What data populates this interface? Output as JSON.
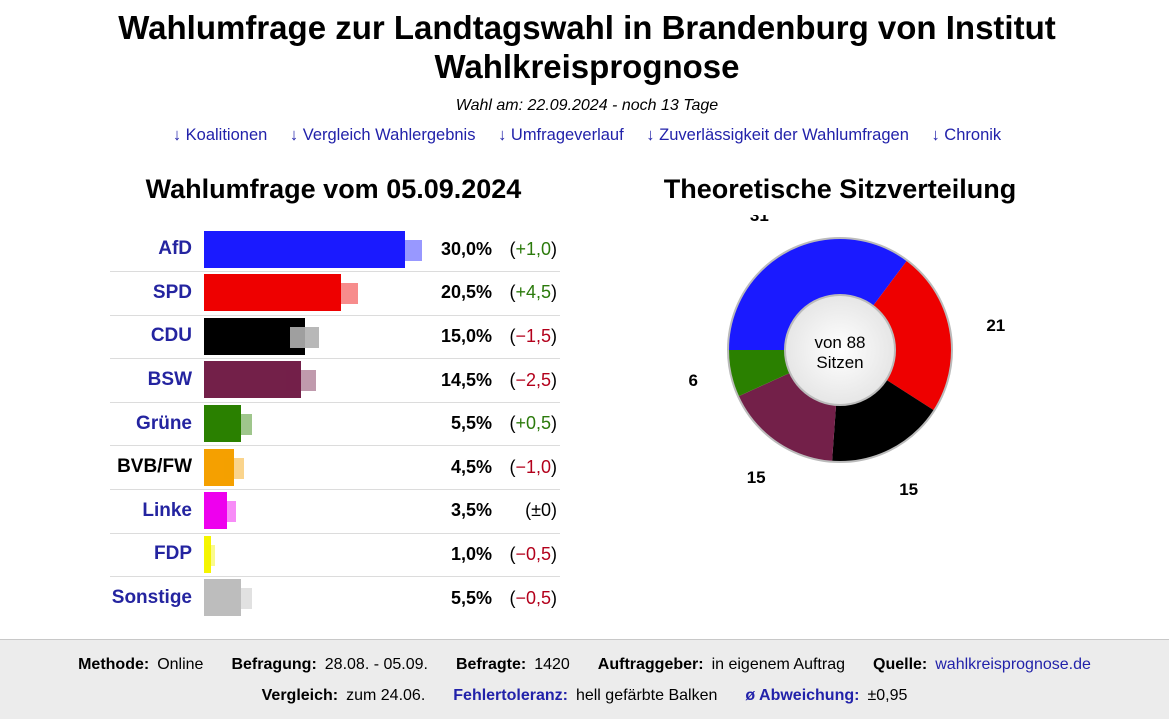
{
  "header": {
    "title": "Wahlumfrage zur Landtagswahl in Brandenburg von Institut Wahlkreisprognose",
    "subtitle": "Wahl am: 22.09.2024 - noch 13 Tage",
    "nav": [
      "↓ Koalitionen",
      "↓ Vergleich Wahlergebnis",
      "↓ Umfrageverlauf",
      "↓ Zuverlässigkeit der Wahlumfragen",
      "↓ Chronik"
    ]
  },
  "chart_data": [
    {
      "type": "bar",
      "title": "Wahlumfrage vom 05.09.2024",
      "orientation": "horizontal",
      "unit": "%",
      "categories": [
        "AfD",
        "SPD",
        "CDU",
        "BSW",
        "Grüne",
        "BVB/FW",
        "Linke",
        "FDP",
        "Sonstige"
      ],
      "values": [
        30.0,
        20.5,
        15.0,
        14.5,
        5.5,
        4.5,
        3.5,
        1.0,
        5.5
      ],
      "value_labels": [
        "30,0%",
        "20,5%",
        "15,0%",
        "14,5%",
        "5,5%",
        "4,5%",
        "3,5%",
        "1,0%",
        "5,5%"
      ],
      "change_labels": [
        "+1,0",
        "+4,5",
        "−1,5",
        "−2,5",
        "+0,5",
        "−1,0",
        "±0",
        "−0,5",
        "−0,5"
      ],
      "changes": [
        1.0,
        4.5,
        -1.5,
        -2.5,
        0.5,
        -1.0,
        0.0,
        -0.5,
        -0.5
      ],
      "error_margin": [
        2.5,
        2.5,
        2.2,
        2.2,
        1.6,
        1.5,
        1.3,
        0.7,
        1.6
      ],
      "colors": [
        "#1a1aff",
        "#ee0000",
        "#000000",
        "#732049",
        "#2a8000",
        "#f5a000",
        "#ee00ee",
        "#f5f500",
        "#bdbdbd"
      ],
      "linked": [
        true,
        true,
        true,
        true,
        true,
        false,
        true,
        true,
        true
      ],
      "xlim": [
        0,
        30
      ]
    },
    {
      "type": "pie",
      "title": "Theoretische Sitzverteilung",
      "style": "donut",
      "total_label": [
        "von 88",
        "Sitzen"
      ],
      "categories": [
        "AfD",
        "SPD",
        "CDU",
        "BSW",
        "Grüne"
      ],
      "values": [
        31,
        21,
        15,
        15,
        6
      ],
      "colors": [
        "#1a1aff",
        "#ee0000",
        "#000000",
        "#732049",
        "#2a8000"
      ]
    }
  ],
  "footer": {
    "row1": [
      {
        "key": "Methode:",
        "value": "Online",
        "link": false
      },
      {
        "key": "Befragung:",
        "value": "28.08. - 05.09.",
        "link": false
      },
      {
        "key": "Befragte:",
        "value": "1420",
        "link": false
      },
      {
        "key": "Auftraggeber:",
        "value": "in eigenem Auftrag",
        "link": false
      },
      {
        "key": "Quelle:",
        "value": "wahlkreisprognose.de",
        "link": true
      }
    ],
    "row2": [
      {
        "key": "Vergleich:",
        "value": "zum 24.06.",
        "keylink": false
      },
      {
        "key": "Fehlertoleranz:",
        "value": "hell gefärbte Balken",
        "keylink": true
      },
      {
        "key": "ø Abweichung:",
        "value": "±0,95",
        "keylink": true
      }
    ]
  }
}
